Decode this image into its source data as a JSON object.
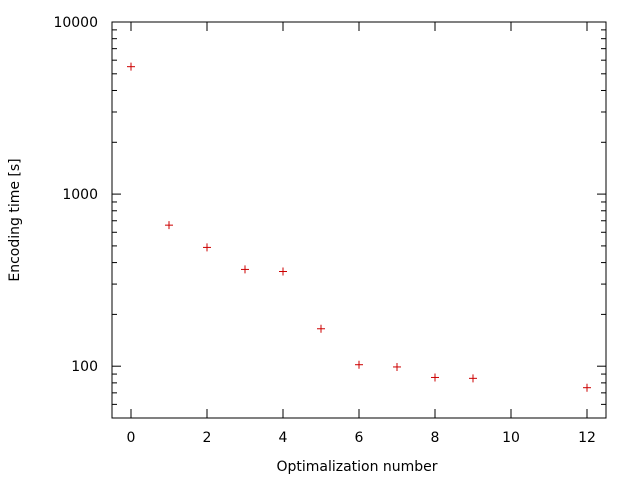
{
  "chart_data": {
    "type": "scatter",
    "xlabel": "Optimalization number",
    "ylabel": "Encoding time [s]",
    "xlim": [
      -0.5,
      12.5
    ],
    "ylim": [
      50,
      10000
    ],
    "y_scale": "log",
    "grid": false,
    "marker": "plus",
    "x_ticks": [
      0,
      2,
      4,
      6,
      8,
      10,
      12
    ],
    "y_ticks": [
      100,
      1000,
      10000
    ],
    "series": [
      {
        "color": "#cc0000",
        "x": [
          0,
          1,
          2,
          3,
          4,
          5,
          6,
          7,
          8,
          9,
          12
        ],
        "y": [
          5500,
          660,
          490,
          365,
          355,
          165,
          102,
          99,
          86,
          85,
          75
        ]
      }
    ]
  }
}
